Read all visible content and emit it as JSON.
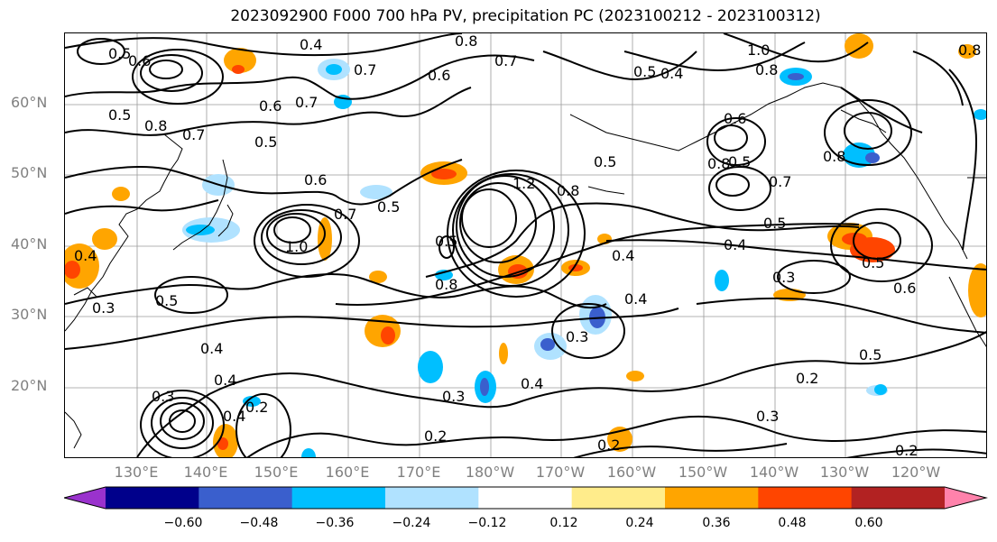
{
  "title": "2023092900 F000 700 hPa PV, precipitation PC (2023100212 - 2023100312)",
  "lat_labels": [
    "60°N",
    "50°N",
    "40°N",
    "30°N",
    "20°N"
  ],
  "lon_labels": [
    "130°E",
    "140°E",
    "150°E",
    "160°E",
    "170°E",
    "180°W",
    "170°W",
    "160°W",
    "150°W",
    "140°W",
    "130°W",
    "120°W"
  ],
  "colorbar": {
    "ticks": [
      "−0.60",
      "−0.48",
      "−0.36",
      "−0.24",
      "−0.12",
      "0.12",
      "0.24",
      "0.36",
      "0.48",
      "0.60"
    ],
    "colors": [
      "#9a32cd",
      "#00008b",
      "#3a5fcd",
      "#00bfff",
      "#b0e2ff",
      "#ffffff",
      "#ffec8b",
      "#ffa500",
      "#ff4500",
      "#b22222",
      "#ff82ab"
    ]
  },
  "contour_labels": [
    "0.5",
    "0.4",
    "0.8",
    "0.6",
    "0.7",
    "0.7",
    "0.6",
    "0.5",
    "0.6",
    "0.4",
    "1.0",
    "0.8",
    "0.5",
    "0.8",
    "0.6",
    "0.8",
    "0.7",
    "0.7",
    "0.5",
    "0.5",
    "0.6",
    "0.7",
    "0.5",
    "1.2",
    "0.8",
    "0.8",
    "0.5",
    "0.8",
    "0.5",
    "0.7",
    "0.4",
    "0.4",
    "0.5",
    "1.0",
    "0.4",
    "0.8",
    "0.5",
    "0.4",
    "0.3",
    "0.4",
    "0.3",
    "0.5",
    "0.6",
    "0.3",
    "0.4",
    "0.3",
    "0.2",
    "0.4",
    "0.3",
    "0.4",
    "0.2",
    "0.2",
    "0.3",
    "0.5",
    "0.2",
    "0.2"
  ]
}
